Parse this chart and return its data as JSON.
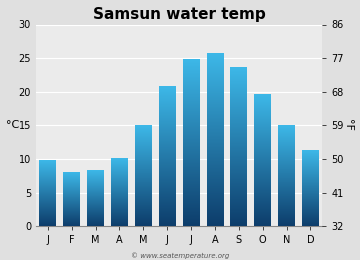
{
  "title": "Samsun water temp",
  "months": [
    "J",
    "F",
    "M",
    "A",
    "M",
    "J",
    "J",
    "A",
    "S",
    "O",
    "N",
    "D"
  ],
  "values_c": [
    9.7,
    8.0,
    8.2,
    10.0,
    15.0,
    20.7,
    24.8,
    25.6,
    23.6,
    19.5,
    15.0,
    11.3
  ],
  "ylim_c": [
    0,
    30
  ],
  "yticks_c": [
    0,
    5,
    10,
    15,
    20,
    25,
    30
  ],
  "yticks_f": [
    32,
    41,
    50,
    59,
    68,
    77,
    86
  ],
  "ylabel_left": "°C",
  "ylabel_right": "°F",
  "bar_color_top": "#3db8e8",
  "bar_color_bottom": "#0d3d6b",
  "bg_color": "#e0e0e0",
  "plot_bg_color": "#ebebeb",
  "grid_color": "#ffffff",
  "watermark": "© www.seatemperature.org",
  "title_fontsize": 11,
  "tick_fontsize": 7,
  "label_fontsize": 8,
  "watermark_fontsize": 5
}
